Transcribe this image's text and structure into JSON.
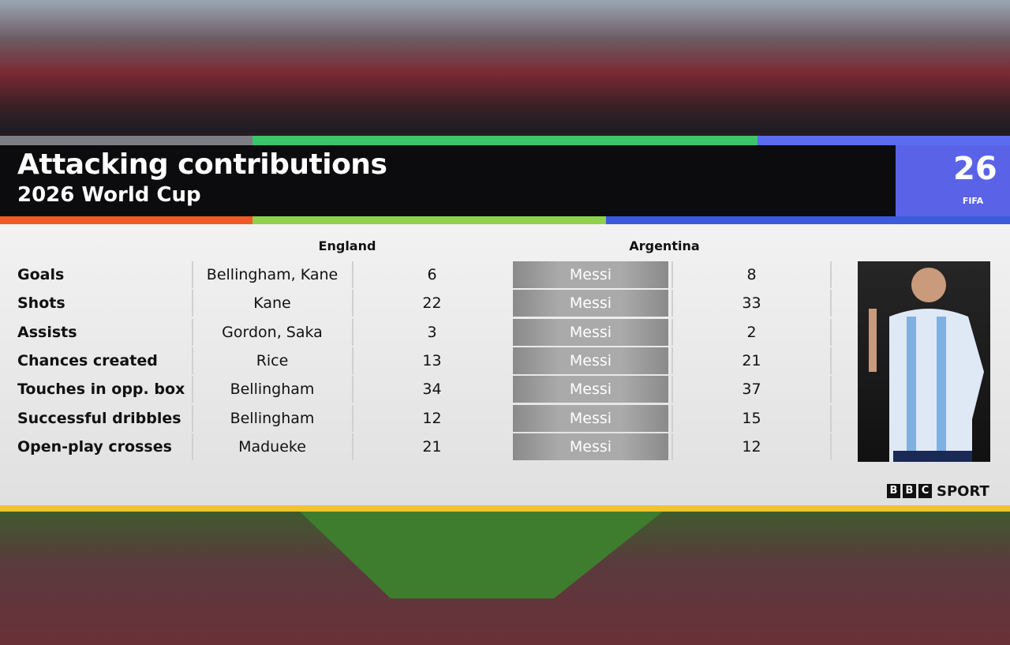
{
  "header": {
    "title": "Attacking contributions",
    "subtitle": "2026 World Cup"
  },
  "logo": {
    "number": "26",
    "text": "FIFA"
  },
  "table": {
    "columns": [
      "England",
      "Argentina"
    ],
    "rows": [
      [
        "Goals",
        "Bellingham, Kane",
        6,
        "Messi",
        8
      ],
      [
        "Shots",
        "Kane",
        22,
        "Messi",
        33
      ],
      [
        "Assists",
        "Gordon, Saka",
        3,
        "Messi",
        2
      ],
      [
        "Chances created",
        "Rice",
        13,
        "Messi",
        21
      ],
      [
        "Touches in opp. box",
        "Bellingham",
        34,
        "Messi",
        37
      ],
      [
        "Successful dribbles",
        "Bellingham",
        12,
        "Messi",
        15
      ],
      [
        "Open-play crosses",
        "Madueke",
        21,
        "Messi",
        12
      ]
    ]
  },
  "branding": {
    "bbc": [
      "B",
      "B",
      "C"
    ],
    "sport": "SPORT"
  }
}
